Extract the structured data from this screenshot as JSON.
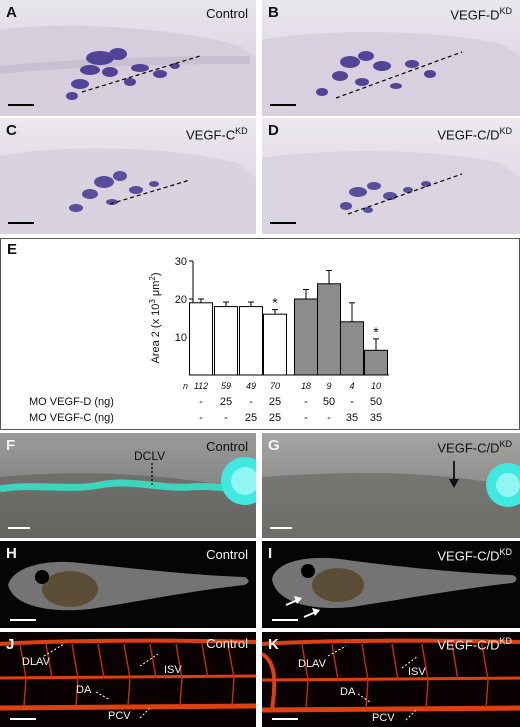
{
  "panels": {
    "A": {
      "letter": "A",
      "label": "Control"
    },
    "B": {
      "letter": "B",
      "label": "VEGF-D",
      "sup": "KD"
    },
    "C": {
      "letter": "C",
      "label": "VEGF-C",
      "sup": "KD"
    },
    "D": {
      "letter": "D",
      "label": "VEGF-C/D",
      "sup": "KD"
    },
    "E": {
      "letter": "E"
    },
    "F": {
      "letter": "F",
      "label": "Control",
      "annotation": "DCLV"
    },
    "G": {
      "letter": "G",
      "label": "VEGF-C/D",
      "sup": "KD"
    },
    "H": {
      "letter": "H",
      "label": "Control"
    },
    "I": {
      "letter": "I",
      "label": "VEGF-C/D",
      "sup": "KD"
    },
    "J": {
      "letter": "J",
      "label": "Control",
      "vessels": [
        "DLAV",
        "ISV",
        "DA",
        "PCV"
      ]
    },
    "K": {
      "letter": "K",
      "label": "VEGF-C/D",
      "sup": "KD",
      "vessels": [
        "DLAV",
        "ISV",
        "DA",
        "PCV"
      ]
    }
  },
  "chart_data": {
    "type": "bar",
    "ylabel_main": "Area 2 (x 10",
    "ylabel_exp": "3",
    "ylabel_unit": " μm",
    "ylabel_unit_exp": "2",
    "ylabel_close": ")",
    "ylim": [
      0,
      30
    ],
    "yticks": [
      "10",
      "20",
      "30"
    ],
    "row_labels": [
      "n",
      "MO VEGF-D (ng)",
      "MO VEGF-C (ng)"
    ],
    "bars": [
      {
        "value": 19,
        "error": 1,
        "n": "112",
        "mo_d": "-",
        "mo_c": "-",
        "color": "#ffffff",
        "star": ""
      },
      {
        "value": 18,
        "error": 1.2,
        "n": "59",
        "mo_d": "25",
        "mo_c": "-",
        "color": "#ffffff",
        "star": ""
      },
      {
        "value": 18,
        "error": 1.2,
        "n": "49",
        "mo_d": "-",
        "mo_c": "25",
        "color": "#ffffff",
        "star": ""
      },
      {
        "value": 16,
        "error": 1.2,
        "n": "70",
        "mo_d": "25",
        "mo_c": "25",
        "color": "#ffffff",
        "star": "*"
      },
      {
        "value": 20,
        "error": 2.5,
        "n": "18",
        "mo_d": "-",
        "mo_c": "-",
        "color": "#8c8c8c",
        "star": ""
      },
      {
        "value": 24,
        "error": 3.5,
        "n": "9",
        "mo_d": "50",
        "mo_c": "-",
        "color": "#8c8c8c",
        "star": ""
      },
      {
        "value": 14,
        "error": 5,
        "n": "4",
        "mo_d": "-",
        "mo_c": "35",
        "color": "#8c8c8c",
        "star": ""
      },
      {
        "value": 6.5,
        "error": 3,
        "n": "10",
        "mo_d": "50",
        "mo_c": "35",
        "color": "#8c8c8c",
        "star": "*"
      }
    ]
  }
}
